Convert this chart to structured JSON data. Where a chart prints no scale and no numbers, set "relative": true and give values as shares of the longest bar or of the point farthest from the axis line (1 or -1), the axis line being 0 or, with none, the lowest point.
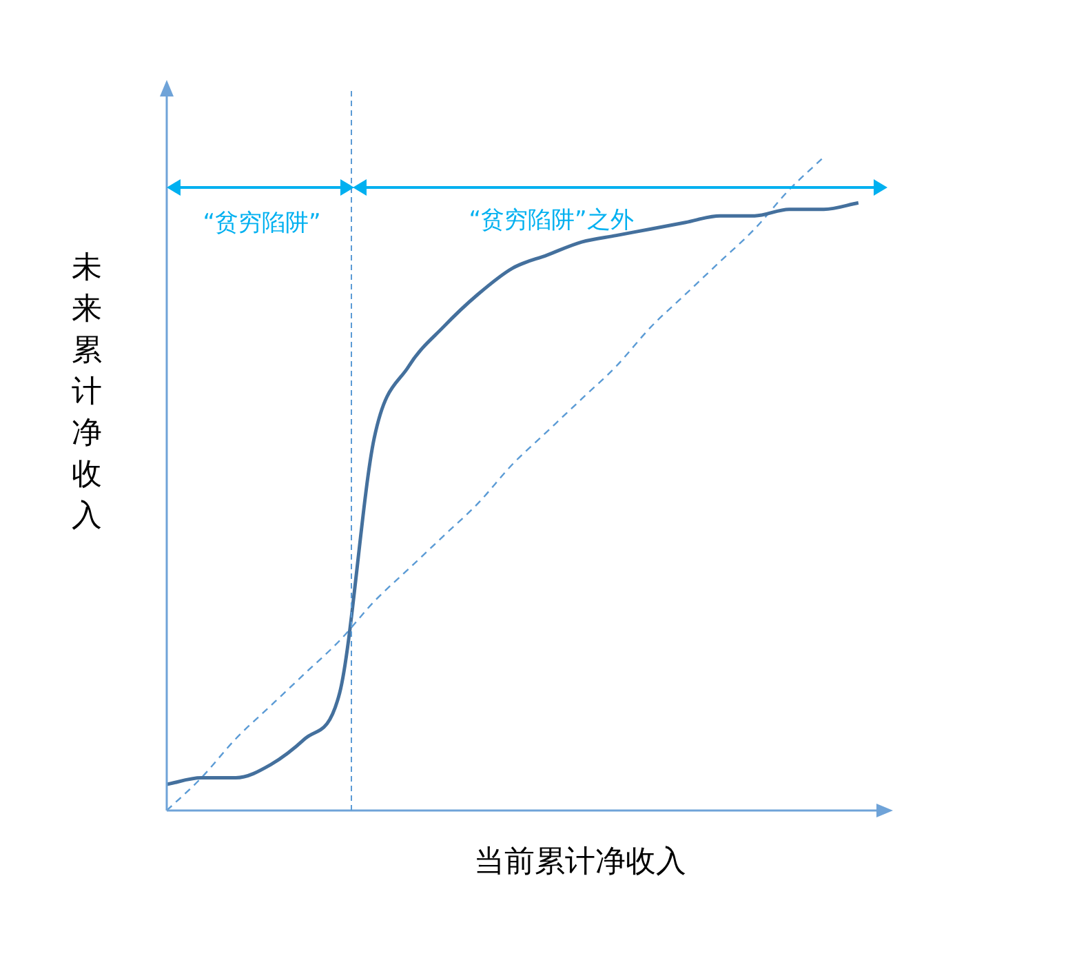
{
  "chart_data": {
    "type": "line",
    "relative": true,
    "xlabel": "当前累计净收入",
    "ylabel": "未来累计净收入",
    "marker": "none",
    "categories": [
      null,
      null,
      null,
      null,
      null,
      null,
      null,
      null,
      null,
      null,
      null,
      null,
      null,
      null,
      null,
      null,
      null,
      null,
      null,
      null,
      null,
      null
    ],
    "series": [
      {
        "color": "#44709d",
        "line_style": "solid",
        "values": [
          0.04,
          0.05,
          0.05,
          0.07,
          0.11,
          0.18,
          0.57,
          0.68,
          0.74,
          0.79,
          0.83,
          0.85,
          0.87,
          0.88,
          0.89,
          0.9,
          0.91,
          0.91,
          0.92,
          0.92,
          0.93,
          null
        ]
      },
      {
        "color": "#5b9bd5",
        "line_style": "dashed",
        "values": [
          0,
          0.05,
          0.11,
          0.16,
          0.21,
          0.26,
          0.32,
          0.37,
          0.42,
          0.47,
          0.53,
          0.58,
          0.63,
          0.68,
          0.74,
          0.79,
          0.84,
          0.89,
          0.95,
          1,
          null,
          null
        ]
      }
    ],
    "annotations": [
      "“贫穷陷阱”",
      "“贫穷陷阱”之外"
    ]
  }
}
